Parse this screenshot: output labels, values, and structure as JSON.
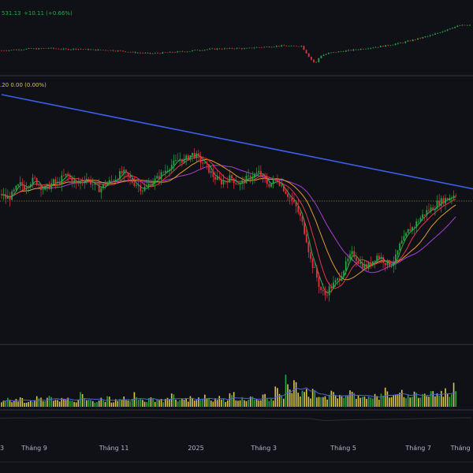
{
  "colors": {
    "background": "#0f1117",
    "pane_divider": "#22252e",
    "up_candle": "#26a641",
    "down_candle": "#e0323f",
    "trendline": "#3b5ee8",
    "ma_green": "#2bb24c",
    "ma_red": "#e8334a",
    "ma_orange": "#e39a2d",
    "ma_purple": "#a83fd1",
    "price_line": "#c8b43a",
    "index_up": "#26a641",
    "index_down": "#e0323f",
    "index_change": "#26a641",
    "vol_yellow": "#d8c54a",
    "vol_green": "#26a641",
    "vol_ma": "#4a62e0",
    "mini_line": "#ffffff",
    "axis_text": "#b2b5be",
    "legend_text": "#d8c54a"
  },
  "index_pane": {
    "legend": "531.13",
    "change": "+10.11 (+0.66%)"
  },
  "price_pane": {
    "legend": ".20  0.00 (0.00%)"
  },
  "chart_data": [
    {
      "type": "candlestick",
      "pane": "index",
      "x_range": [
        0,
        100
      ],
      "y_range": [
        0,
        100
      ],
      "series": [
        {
          "name": "",
          "values": [
            [
              0,
              34
            ],
            [
              2,
              35
            ],
            [
              4,
              36
            ],
            [
              6,
              37
            ],
            [
              8,
              37
            ],
            [
              10,
              38
            ],
            [
              12,
              37
            ],
            [
              14,
              36
            ],
            [
              16,
              37
            ],
            [
              18,
              36
            ],
            [
              20,
              35
            ],
            [
              22,
              35
            ],
            [
              24,
              34
            ],
            [
              26,
              33
            ],
            [
              28,
              31
            ],
            [
              30,
              30
            ],
            [
              32,
              29
            ],
            [
              34,
              30
            ],
            [
              36,
              31
            ],
            [
              38,
              32
            ],
            [
              40,
              33
            ],
            [
              42,
              35
            ],
            [
              44,
              36
            ],
            [
              46,
              37
            ],
            [
              48,
              37
            ],
            [
              50,
              38
            ],
            [
              52,
              37
            ],
            [
              54,
              39
            ],
            [
              56,
              40
            ],
            [
              58,
              41
            ],
            [
              60,
              42
            ],
            [
              62,
              41
            ],
            [
              64,
              42
            ],
            [
              66,
              20
            ],
            [
              67,
              12
            ],
            [
              68,
              25
            ],
            [
              70,
              30
            ],
            [
              72,
              32
            ],
            [
              74,
              34
            ],
            [
              76,
              36
            ],
            [
              78,
              38
            ],
            [
              80,
              40
            ],
            [
              82,
              42
            ],
            [
              84,
              45
            ],
            [
              86,
              48
            ],
            [
              88,
              52
            ],
            [
              90,
              56
            ],
            [
              92,
              60
            ],
            [
              94,
              66
            ],
            [
              96,
              72
            ],
            [
              98,
              76
            ]
          ]
        }
      ]
    },
    {
      "type": "candlestick",
      "pane": "price",
      "x_range": [
        0,
        100
      ],
      "y_range": [
        0,
        100
      ],
      "xtick_labels": [
        "Tháng 9",
        "Tháng 11",
        "2025",
        "Tháng 3",
        "Tháng 5",
        "Tháng 7",
        "Tháng"
      ],
      "xtick_positions": [
        7,
        24,
        41.5,
        56,
        73,
        89,
        98
      ],
      "series": [
        {
          "name": "",
          "values": [
            [
              0,
              58
            ],
            [
              1,
              56
            ],
            [
              2,
              57
            ],
            [
              3,
              60
            ],
            [
              4,
              62
            ],
            [
              5,
              61
            ],
            [
              6,
              63
            ],
            [
              7,
              64
            ],
            [
              8,
              62
            ],
            [
              9,
              60
            ],
            [
              10,
              61
            ],
            [
              11,
              63
            ],
            [
              12,
              62
            ],
            [
              13,
              65
            ],
            [
              14,
              66
            ],
            [
              15,
              64
            ],
            [
              16,
              62
            ],
            [
              17,
              63
            ],
            [
              18,
              65
            ],
            [
              19,
              63
            ],
            [
              20,
              61
            ],
            [
              21,
              60
            ],
            [
              22,
              62
            ],
            [
              23,
              63
            ],
            [
              24,
              64
            ],
            [
              25,
              66
            ],
            [
              26,
              67
            ],
            [
              27,
              65
            ],
            [
              28,
              63
            ],
            [
              29,
              62
            ],
            [
              30,
              60
            ],
            [
              31,
              61
            ],
            [
              32,
              63
            ],
            [
              33,
              64
            ],
            [
              34,
              66
            ],
            [
              35,
              68
            ],
            [
              36,
              70
            ],
            [
              37,
              71
            ],
            [
              38,
              73
            ],
            [
              39,
              72
            ],
            [
              40,
              74
            ],
            [
              41,
              75
            ],
            [
              42,
              73
            ],
            [
              43,
              71
            ],
            [
              44,
              69
            ],
            [
              45,
              66
            ],
            [
              46,
              64
            ],
            [
              47,
              63
            ],
            [
              48,
              64
            ],
            [
              49,
              65
            ],
            [
              50,
              63
            ],
            [
              51,
              62
            ],
            [
              52,
              64
            ],
            [
              53,
              65
            ],
            [
              54,
              66
            ],
            [
              55,
              67
            ],
            [
              56,
              64
            ],
            [
              57,
              62
            ],
            [
              58,
              63
            ],
            [
              59,
              64
            ],
            [
              60,
              61
            ],
            [
              61,
              58
            ],
            [
              62,
              55
            ],
            [
              63,
              52
            ],
            [
              64,
              47
            ],
            [
              65,
              40
            ],
            [
              66,
              30
            ],
            [
              67,
              25
            ],
            [
              68,
              18
            ],
            [
              69,
              15
            ],
            [
              70,
              18
            ],
            [
              71,
              20
            ],
            [
              72,
              22
            ],
            [
              73,
              26
            ],
            [
              74,
              30
            ],
            [
              75,
              33
            ],
            [
              76,
              30
            ],
            [
              77,
              28
            ],
            [
              78,
              27
            ],
            [
              79,
              29
            ],
            [
              80,
              32
            ],
            [
              81,
              31
            ],
            [
              82,
              29
            ],
            [
              83,
              28
            ],
            [
              84,
              30
            ],
            [
              85,
              36
            ],
            [
              86,
              39
            ],
            [
              87,
              43
            ],
            [
              88,
              44
            ],
            [
              89,
              47
            ],
            [
              90,
              49
            ],
            [
              91,
              51
            ],
            [
              92,
              52
            ],
            [
              93,
              54
            ],
            [
              94,
              55
            ],
            [
              95,
              56
            ],
            [
              96,
              57
            ],
            [
              97,
              58
            ],
            [
              98,
              59
            ],
            [
              99,
              60
            ]
          ]
        },
        {
          "name": "",
          "kind": "trendline",
          "points": [
            [
              0,
              100
            ],
            [
              100,
              60
            ]
          ]
        },
        {
          "name": "",
          "kind": "ma",
          "period": "short",
          "values": []
        },
        {
          "name": "",
          "kind": "ma",
          "period": "mid",
          "values": []
        },
        {
          "name": "",
          "kind": "ma",
          "period": "long",
          "values": []
        }
      ]
    },
    {
      "type": "bar",
      "pane": "volume",
      "y_range": [
        0,
        100
      ],
      "values": [
        12,
        16,
        10,
        14,
        20,
        11,
        13,
        18,
        15,
        12,
        22,
        14,
        11,
        16,
        19,
        13,
        12,
        24,
        15,
        14,
        11,
        17,
        13,
        21,
        12,
        15,
        18,
        14,
        13,
        26,
        15,
        12,
        17,
        14,
        19,
        13,
        16,
        22,
        12,
        15,
        14,
        18,
        13,
        17,
        21,
        16,
        15,
        20,
        14,
        13,
        25,
        16,
        19,
        14,
        18,
        17,
        15,
        22,
        16,
        14,
        38,
        18,
        55,
        33,
        46,
        28,
        41,
        22,
        30,
        26,
        24,
        20,
        27,
        23,
        25,
        21,
        29,
        24,
        22,
        26,
        20,
        23,
        19,
        22,
        35,
        24,
        21,
        28,
        25,
        22,
        27,
        23,
        26,
        24,
        30,
        25,
        28,
        32,
        27,
        42
      ]
    },
    {
      "type": "line",
      "pane": "overview",
      "y_range": [
        0,
        100
      ],
      "values": [
        60,
        62,
        61,
        63,
        64,
        63,
        62,
        61,
        63,
        64,
        62,
        60,
        61,
        62,
        63,
        62,
        60,
        59,
        58,
        57,
        40,
        45,
        48,
        50,
        52,
        54,
        58,
        60,
        62,
        63
      ]
    }
  ]
}
